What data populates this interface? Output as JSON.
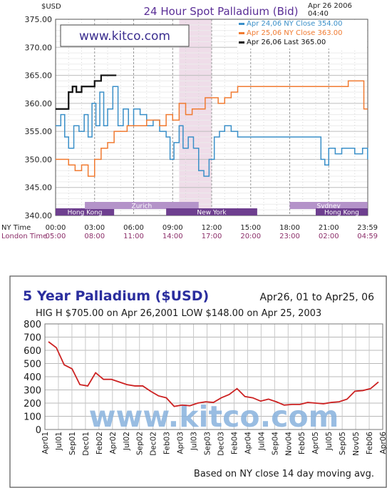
{
  "chart_data": [
    {
      "type": "line",
      "title": "24 Hour Spot Palladium (Bid)",
      "date_label": "Apr 26 2006",
      "time_label": "04:40",
      "y_unit": "$USD",
      "ylim": [
        340,
        375
      ],
      "y_ticks": [
        "375.00",
        "370.00",
        "365.00",
        "360.00",
        "355.00",
        "350.00",
        "345.00",
        "340.00"
      ],
      "x_ticks": [
        {
          "ny": "00:00",
          "london": "05:00"
        },
        {
          "ny": "03:00",
          "london": "08:00"
        },
        {
          "ny": "06:00",
          "london": "11:00"
        },
        {
          "ny": "09:00",
          "london": "14:00"
        },
        {
          "ny": "12:00",
          "london": "17:00"
        },
        {
          "ny": "15:00",
          "london": "20:00"
        },
        {
          "ny": "18:00",
          "london": "23:00"
        },
        {
          "ny": "21:00",
          "london": "02:00"
        },
        {
          "ny": "23:59",
          "london": "04:59"
        }
      ],
      "ny_time_label": "NY Time",
      "london_time_label": "London Time",
      "watermark": "www.kitco.com",
      "grid": true,
      "legend_position": "top-right",
      "highlight_hours": [
        9.5,
        12
      ],
      "sessions": [
        {
          "name": "Hong Kong",
          "start": 0,
          "end": 4.5,
          "row": 2
        },
        {
          "name": "Zurich",
          "start": 2.25,
          "end": 11,
          "row": 1
        },
        {
          "name": "New York",
          "start": 8.5,
          "end": 15.5,
          "row": 2
        },
        {
          "name": "Sydney",
          "start": 18,
          "end": 23.99,
          "row": 1
        },
        {
          "name": "Hong Kong",
          "start": 20,
          "end": 23.99,
          "row": 2
        }
      ],
      "series": [
        {
          "name": "Apr 24,06 NY Close 354.00",
          "color": "#3a8fc8",
          "points": [
            [
              0,
              356
            ],
            [
              0.4,
              358
            ],
            [
              0.7,
              354
            ],
            [
              1,
              352
            ],
            [
              1.4,
              356
            ],
            [
              1.8,
              355
            ],
            [
              2.2,
              358
            ],
            [
              2.5,
              354
            ],
            [
              2.8,
              360
            ],
            [
              3.1,
              356
            ],
            [
              3.4,
              362
            ],
            [
              3.7,
              356
            ],
            [
              4,
              359
            ],
            [
              4.4,
              363
            ],
            [
              4.8,
              356
            ],
            [
              5.2,
              359
            ],
            [
              5.6,
              356
            ],
            [
              6,
              359
            ],
            [
              6.5,
              358
            ],
            [
              7,
              356
            ],
            [
              7.5,
              357
            ],
            [
              8,
              355
            ],
            [
              8.5,
              354
            ],
            [
              8.8,
              350
            ],
            [
              9.1,
              353
            ],
            [
              9.5,
              356
            ],
            [
              9.8,
              352
            ],
            [
              10.2,
              354
            ],
            [
              10.6,
              352
            ],
            [
              11,
              348
            ],
            [
              11.4,
              347
            ],
            [
              11.8,
              350
            ],
            [
              12.2,
              354
            ],
            [
              12.6,
              355
            ],
            [
              13,
              356
            ],
            [
              13.5,
              355
            ],
            [
              14,
              354
            ],
            [
              15,
              354
            ],
            [
              16,
              354
            ],
            [
              17,
              354
            ],
            [
              18,
              354
            ],
            [
              19,
              354
            ],
            [
              20,
              354
            ],
            [
              20.4,
              350
            ],
            [
              20.7,
              349
            ],
            [
              21,
              352
            ],
            [
              21.5,
              351
            ],
            [
              22,
              352
            ],
            [
              23,
              351
            ],
            [
              23.6,
              352
            ],
            [
              23.99,
              350
            ]
          ]
        },
        {
          "name": "Apr 25,06 NY Close 363.00",
          "color": "#f07a30",
          "points": [
            [
              0,
              350
            ],
            [
              1,
              349
            ],
            [
              1.5,
              348
            ],
            [
              2,
              349
            ],
            [
              2.5,
              347
            ],
            [
              3,
              350
            ],
            [
              3.5,
              352
            ],
            [
              4,
              353
            ],
            [
              4.5,
              355
            ],
            [
              5,
              355
            ],
            [
              5.5,
              356
            ],
            [
              6,
              356
            ],
            [
              7,
              357
            ],
            [
              7.5,
              357
            ],
            [
              8,
              356
            ],
            [
              8.5,
              358
            ],
            [
              9,
              357
            ],
            [
              9.5,
              360
            ],
            [
              10,
              358
            ],
            [
              10.5,
              359
            ],
            [
              11,
              359
            ],
            [
              11.5,
              361
            ],
            [
              12,
              361
            ],
            [
              12.5,
              360
            ],
            [
              13,
              361
            ],
            [
              13.5,
              362
            ],
            [
              14,
              363
            ],
            [
              15,
              363
            ],
            [
              16,
              363
            ],
            [
              17,
              363
            ],
            [
              18,
              363
            ],
            [
              19,
              363
            ],
            [
              20,
              363
            ],
            [
              21,
              363
            ],
            [
              22,
              363
            ],
            [
              22.5,
              364
            ],
            [
              23,
              364
            ],
            [
              23.5,
              364
            ],
            [
              23.7,
              359
            ],
            [
              23.99,
              359
            ]
          ]
        },
        {
          "name": "Apr 26,06 Last 365.00",
          "color": "#111111",
          "points": [
            [
              0,
              359
            ],
            [
              0.5,
              359
            ],
            [
              1,
              362
            ],
            [
              1.3,
              363
            ],
            [
              1.6,
              362
            ],
            [
              2,
              363
            ],
            [
              2.5,
              363
            ],
            [
              3,
              364
            ],
            [
              3.5,
              365
            ],
            [
              4,
              365
            ],
            [
              4.67,
              365
            ]
          ]
        }
      ]
    },
    {
      "type": "line",
      "title": "5 Year Palladium ($USD)",
      "date_range": "Apr26, 01 to Apr25, 06",
      "high_low": "HIG H $705.00 on Apr 26,2001 LOW $148.00 on Apr 25, 2003",
      "footnote": "Based on NY close 14 day moving avg.",
      "watermark": "www.kitco.com",
      "ylim": [
        0,
        800
      ],
      "y_ticks": [
        "0",
        "100",
        "200",
        "300",
        "400",
        "500",
        "600",
        "700",
        "800"
      ],
      "x_ticks": [
        "Apr01",
        "Jul01",
        "Sep01",
        "Dec01",
        "Feb02",
        "Apr02",
        "Jul02",
        "Sep02",
        "Dec02",
        "Feb03",
        "Apr03",
        "Jul03",
        "Sep03",
        "Dec03",
        "Feb04",
        "Apr04",
        "Jul04",
        "Sep04",
        "Nov04",
        "Feb05",
        "Apr05",
        "Jul05",
        "Sep05",
        "Nov05",
        "Feb06",
        "Apr06"
      ],
      "grid": true,
      "series": [
        {
          "color": "#cc2222",
          "values": [
            665,
            620,
            490,
            460,
            340,
            330,
            430,
            380,
            380,
            360,
            340,
            330,
            330,
            290,
            255,
            240,
            175,
            185,
            180,
            200,
            210,
            205,
            240,
            265,
            310,
            250,
            240,
            215,
            230,
            210,
            185,
            190,
            190,
            205,
            200,
            195,
            205,
            210,
            230,
            290,
            295,
            310,
            360
          ]
        }
      ]
    }
  ]
}
